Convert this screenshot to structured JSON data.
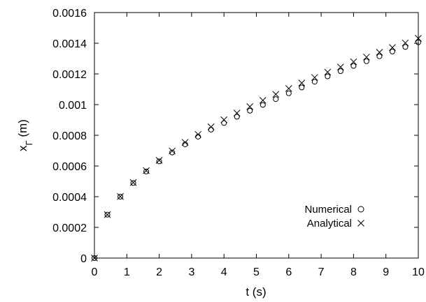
{
  "chart_data": {
    "type": "scatter",
    "title": "",
    "xlabel": "t (s)",
    "ylabel_main": "x",
    "ylabel_sub": "Γ",
    "ylabel_unit": " (m)",
    "xlim": [
      0,
      10
    ],
    "ylim": [
      0,
      0.0016
    ],
    "xticks": [
      0,
      1,
      2,
      3,
      4,
      5,
      6,
      7,
      8,
      9,
      10
    ],
    "yticks": [
      0,
      0.0002,
      0.0004,
      0.0006,
      0.0008,
      0.001,
      0.0012,
      0.0014,
      0.0016
    ],
    "xtick_labels": [
      "0",
      "1",
      "2",
      "3",
      "4",
      "5",
      "6",
      "7",
      "8",
      "9",
      "10"
    ],
    "ytick_labels": [
      "0",
      "0.0002",
      "0.0004",
      "0.0006",
      "0.0008",
      "0.001",
      "0.0012",
      "0.0014",
      "0.0016"
    ],
    "grid": false,
    "legend_position": "lower-right",
    "series": [
      {
        "name": "Numerical",
        "marker": "circle",
        "x": [
          0,
          0.4,
          0.8,
          1.2,
          1.6,
          2.0,
          2.4,
          2.8,
          3.2,
          3.6,
          4.0,
          4.4,
          4.8,
          5.2,
          5.6,
          6.0,
          6.4,
          6.8,
          7.2,
          7.6,
          8.0,
          8.4,
          8.8,
          9.2,
          9.6,
          10.0
        ],
        "y": [
          0,
          0.000283,
          0.0004,
          0.000489,
          0.000564,
          0.00063,
          0.000688,
          0.000741,
          0.000791,
          0.000837,
          0.00088,
          0.000921,
          0.00096,
          0.000998,
          0.001036,
          0.001074,
          0.001112,
          0.001149,
          0.001184,
          0.001218,
          0.001252,
          0.001283,
          0.001315,
          0.001346,
          0.001376,
          0.001406
        ]
      },
      {
        "name": "Analytical",
        "marker": "cross",
        "x": [
          0,
          0.4,
          0.8,
          1.2,
          1.6,
          2.0,
          2.4,
          2.8,
          3.2,
          3.6,
          4.0,
          4.4,
          4.8,
          5.2,
          5.6,
          6.0,
          6.4,
          6.8,
          7.2,
          7.6,
          8.0,
          8.4,
          8.8,
          9.2,
          9.6,
          10.0
        ],
        "y": [
          0,
          0.000283,
          0.000401,
          0.000492,
          0.00057,
          0.000637,
          0.000698,
          0.000754,
          0.000806,
          0.000855,
          0.000901,
          0.000945,
          0.000987,
          0.001028,
          0.001067,
          0.001105,
          0.001141,
          0.001177,
          0.001212,
          0.001245,
          0.001279,
          0.00131,
          0.001341,
          0.001372,
          0.001402,
          0.001432
        ]
      }
    ]
  }
}
